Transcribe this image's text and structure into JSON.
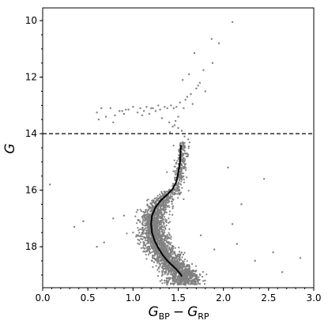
{
  "chart_data": {
    "type": "scatter",
    "title": "",
    "xlabel": {
      "main": "G",
      "sub1": "BP",
      "minus": "−",
      "main2": "G",
      "sub2": "RP"
    },
    "ylabel": "G",
    "xlim": [
      0.0,
      3.0
    ],
    "ylim": [
      19.45,
      9.55
    ],
    "y_inverted": true,
    "grid": false,
    "x_ticks": [
      0.0,
      0.5,
      1.0,
      1.5,
      2.0,
      2.5,
      3.0
    ],
    "x_tick_labels": [
      "0.0",
      "0.5",
      "1.0",
      "1.5",
      "2.0",
      "2.5",
      "3.0"
    ],
    "y_ticks": [
      10,
      12,
      14,
      16,
      18
    ],
    "y_tick_labels": [
      "10",
      "12",
      "14",
      "16",
      "18"
    ],
    "hline": {
      "y": 14.0,
      "style": "dashed",
      "color": "#000000"
    },
    "point_color": "#808080",
    "line_color": "#000000",
    "isochrone": {
      "x": [
        1.53,
        1.52,
        1.5,
        1.48,
        1.44,
        1.38,
        1.31,
        1.25,
        1.21,
        1.2,
        1.21,
        1.24,
        1.28,
        1.33,
        1.38,
        1.43,
        1.48,
        1.52,
        1.54
      ],
      "y": [
        14.4,
        15.0,
        15.4,
        15.7,
        15.95,
        16.15,
        16.35,
        16.6,
        16.9,
        17.2,
        17.5,
        17.8,
        18.05,
        18.3,
        18.5,
        18.65,
        18.8,
        18.95,
        19.05
      ]
    },
    "sparse_points": {
      "x": [
        2.1,
        1.87,
        1.95,
        1.68,
        1.62,
        1.78,
        1.88,
        1.55,
        1.72,
        1.8,
        1.6,
        1.52,
        1.58,
        1.64,
        1.7,
        1.74,
        1.66,
        1.56,
        1.48,
        1.45,
        1.42,
        1.38,
        1.35,
        1.3,
        1.28,
        1.25,
        1.22,
        1.18,
        1.15,
        1.12,
        1.08,
        1.05,
        1.0,
        0.95,
        0.9,
        0.85,
        0.8,
        0.78,
        0.75,
        0.7,
        0.62,
        0.6,
        0.65,
        0.88,
        0.92,
        1.1,
        1.2,
        1.32,
        1.4,
        1.46,
        1.5,
        1.54,
        1.57,
        1.61,
        1.5,
        1.47,
        1.44,
        1.41,
        0.08,
        0.35,
        0.45,
        0.6,
        0.68,
        0.78,
        0.9,
        1.0,
        1.05,
        2.05,
        2.2,
        2.45,
        2.55,
        2.65,
        2.85,
        2.35,
        2.15,
        1.9,
        1.75,
        2.1
      ],
      "y": [
        10.05,
        10.65,
        10.8,
        11.15,
        11.9,
        11.75,
        11.5,
        12.1,
        12.3,
        12.5,
        12.7,
        12.9,
        12.8,
        12.6,
        12.4,
        12.2,
        12.95,
        13.1,
        13.05,
        13.1,
        13.0,
        13.1,
        13.05,
        13.15,
        13.0,
        13.2,
        13.1,
        13.3,
        13.05,
        13.2,
        13.1,
        13.25,
        13.05,
        13.15,
        13.3,
        13.2,
        13.35,
        13.6,
        13.1,
        13.4,
        13.5,
        13.25,
        13.1,
        13.2,
        13.15,
        13.35,
        13.1,
        13.45,
        13.6,
        13.7,
        13.8,
        13.9,
        14.1,
        14.2,
        13.4,
        13.55,
        13.75,
        13.95,
        15.8,
        17.3,
        17.1,
        18.0,
        17.85,
        17.0,
        16.9,
        17.5,
        16.7,
        15.2,
        16.5,
        15.6,
        18.2,
        18.9,
        18.4,
        18.5,
        17.9,
        18.1,
        17.6,
        17.2
      ]
    },
    "dense_seed": 12345,
    "dense_count": 2600
  }
}
